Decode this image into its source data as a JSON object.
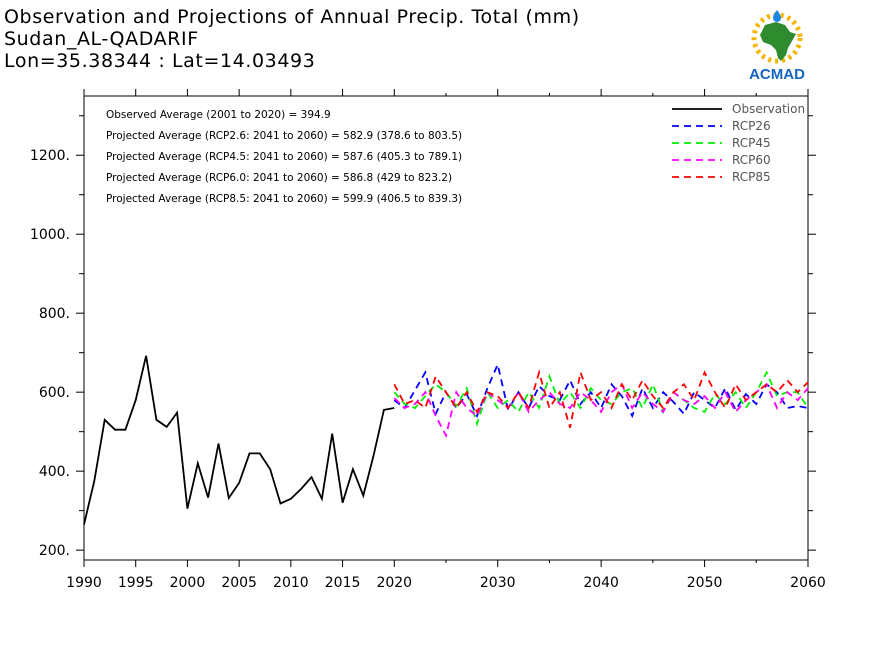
{
  "header": {
    "line1": "Observation and Projections of Annual Precip. Total (mm)",
    "line2": "Sudan_AL-QADARIF",
    "line3": "Lon=35.38344 : Lat=14.03493"
  },
  "logo": {
    "text": "ACMAD",
    "icon": "africa-map-sun-drop-icon"
  },
  "annotations": [
    "Observed Average (2001 to 2020) = 394.9",
    "Projected Average (RCP2.6: 2041 to 2060) = 582.9 (378.6 to 803.5)",
    "Projected Average (RCP4.5: 2041 to 2060) = 587.6 (405.3 to 789.1)",
    "Projected Average (RCP6.0: 2041 to 2060) = 586.8 (429 to 823.2)",
    "Projected Average (RCP8.5: 2041 to 2060) = 599.9 (406.5 to 839.3)"
  ],
  "chart_data": {
    "type": "line",
    "title": "Observation and Projections of Annual Precip. Total (mm)",
    "xlabel": "",
    "ylabel": "",
    "xlim": [
      1990,
      2060
    ],
    "ylim": [
      175,
      1350
    ],
    "x_ticks": [
      1990,
      1995,
      2000,
      2005,
      2010,
      2015,
      2020,
      2030,
      2040,
      2050,
      2060
    ],
    "y_ticks": [
      200,
      400,
      600,
      800,
      1000,
      1200
    ],
    "y_tick_labels": [
      "200.",
      "400.",
      "600.",
      "800.",
      "1000.",
      "1200."
    ],
    "legend_position": "top-right",
    "grid": false,
    "series": [
      {
        "name": "Observation",
        "color": "#000000",
        "dash": "solid",
        "x": [
          1990,
          1991,
          1992,
          1993,
          1994,
          1995,
          1996,
          1997,
          1998,
          1999,
          2000,
          2001,
          2002,
          2003,
          2004,
          2005,
          2006,
          2007,
          2008,
          2009,
          2010,
          2011,
          2012,
          2013,
          2014,
          2015,
          2016,
          2017,
          2018,
          2019,
          2020
        ],
        "values": [
          265,
          375,
          530,
          505,
          505,
          580,
          692,
          530,
          512,
          548,
          305,
          420,
          333,
          470,
          332,
          370,
          445,
          445,
          405,
          318,
          330,
          355,
          385,
          330,
          495,
          320,
          405,
          338,
          440,
          555,
          560
        ]
      },
      {
        "name": "RCP26",
        "color": "#0000ff",
        "dash": "dashed",
        "x": [
          2020,
          2021,
          2022,
          2023,
          2024,
          2025,
          2026,
          2027,
          2028,
          2029,
          2030,
          2031,
          2032,
          2033,
          2034,
          2035,
          2036,
          2037,
          2038,
          2039,
          2040,
          2041,
          2042,
          2043,
          2044,
          2045,
          2046,
          2047,
          2048,
          2049,
          2050,
          2051,
          2052,
          2053,
          2054,
          2055,
          2056,
          2057,
          2058,
          2059,
          2060
        ],
        "values": [
          580,
          560,
          605,
          650,
          545,
          600,
          560,
          595,
          540,
          610,
          670,
          555,
          600,
          560,
          615,
          590,
          580,
          630,
          570,
          600,
          560,
          620,
          590,
          540,
          610,
          560,
          600,
          575,
          545,
          600,
          580,
          560,
          610,
          555,
          595,
          570,
          620,
          600,
          560,
          565,
          560
        ]
      },
      {
        "name": "RCP45",
        "color": "#00ee00",
        "dash": "dashed",
        "x": [
          2020,
          2021,
          2022,
          2023,
          2024,
          2025,
          2026,
          2027,
          2028,
          2029,
          2030,
          2031,
          2032,
          2033,
          2034,
          2035,
          2036,
          2037,
          2038,
          2039,
          2040,
          2041,
          2042,
          2043,
          2044,
          2045,
          2046,
          2047,
          2048,
          2049,
          2050,
          2051,
          2052,
          2053,
          2054,
          2055,
          2056,
          2057,
          2058,
          2059,
          2060
        ],
        "values": [
          600,
          570,
          560,
          590,
          620,
          600,
          565,
          610,
          520,
          600,
          560,
          580,
          550,
          600,
          560,
          640,
          570,
          600,
          560,
          610,
          580,
          570,
          600,
          610,
          560,
          620,
          550,
          600,
          580,
          560,
          550,
          595,
          570,
          600,
          560,
          600,
          650,
          590,
          600,
          600,
          560
        ]
      },
      {
        "name": "RCP60",
        "color": "#ff00ff",
        "dash": "dashed",
        "x": [
          2020,
          2021,
          2022,
          2023,
          2024,
          2025,
          2026,
          2027,
          2028,
          2029,
          2030,
          2031,
          2032,
          2033,
          2034,
          2035,
          2036,
          2037,
          2038,
          2039,
          2040,
          2041,
          2042,
          2043,
          2044,
          2045,
          2046,
          2047,
          2048,
          2049,
          2050,
          2051,
          2052,
          2053,
          2054,
          2055,
          2056,
          2057,
          2058,
          2059,
          2060
        ],
        "values": [
          585,
          560,
          570,
          600,
          540,
          490,
          600,
          560,
          540,
          600,
          580,
          560,
          600,
          550,
          580,
          600,
          570,
          560,
          600,
          580,
          550,
          600,
          620,
          560,
          600,
          570,
          550,
          600,
          580,
          570,
          590,
          560,
          600,
          550,
          580,
          600,
          620,
          560,
          600,
          580,
          610
        ]
      },
      {
        "name": "RCP85",
        "color": "#ff0000",
        "dash": "dashed",
        "x": [
          2020,
          2021,
          2022,
          2023,
          2024,
          2025,
          2026,
          2027,
          2028,
          2029,
          2030,
          2031,
          2032,
          2033,
          2034,
          2035,
          2036,
          2037,
          2038,
          2039,
          2040,
          2041,
          2042,
          2043,
          2044,
          2045,
          2046,
          2047,
          2048,
          2049,
          2050,
          2051,
          2052,
          2053,
          2054,
          2055,
          2056,
          2057,
          2058,
          2059,
          2060
        ],
        "values": [
          620,
          570,
          580,
          560,
          640,
          600,
          560,
          600,
          550,
          600,
          590,
          560,
          600,
          560,
          650,
          560,
          600,
          510,
          650,
          580,
          600,
          560,
          620,
          580,
          630,
          590,
          560,
          600,
          620,
          580,
          650,
          600,
          560,
          620,
          580,
          600,
          620,
          600,
          630,
          600,
          625
        ]
      }
    ]
  }
}
